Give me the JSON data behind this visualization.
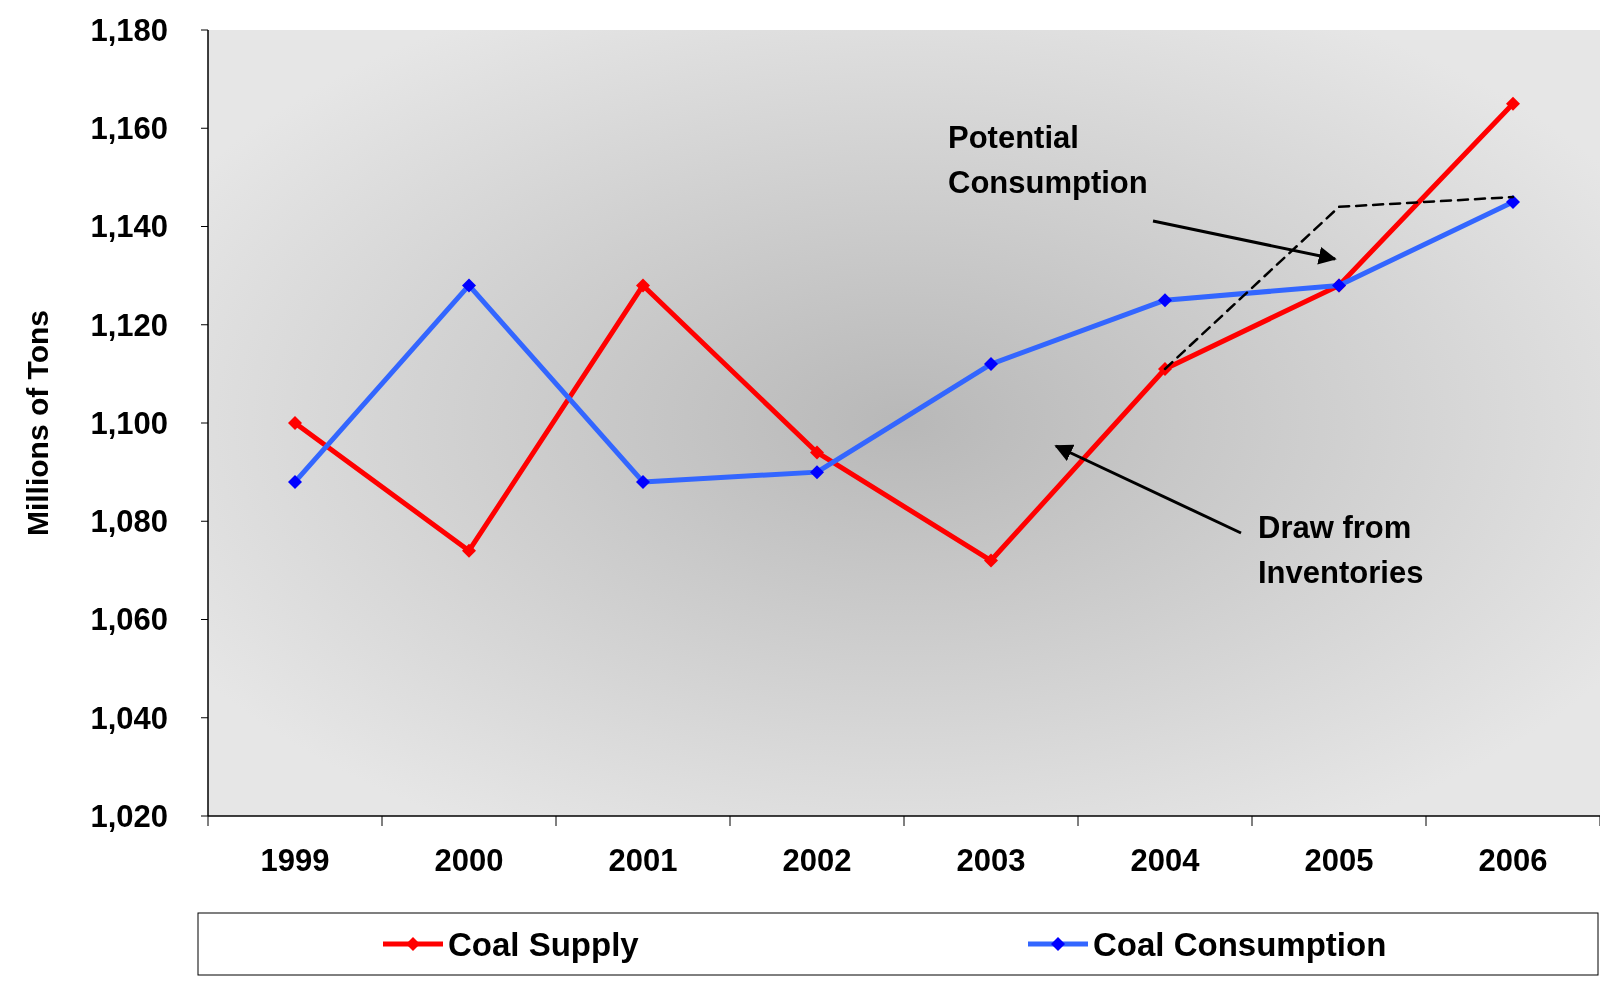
{
  "chart_data": {
    "type": "line",
    "ylabel": "Millions of Tons",
    "categories": [
      "1999",
      "2000",
      "2001",
      "2002",
      "2003",
      "2004",
      "2005",
      "2006"
    ],
    "series": [
      {
        "name": "Coal Supply",
        "color": "#ff0000",
        "values": [
          1100,
          1074,
          1128,
          1094,
          1072,
          1111,
          1128,
          1165
        ]
      },
      {
        "name": "Coal Consumption",
        "color": "#3366ff",
        "values": [
          1088,
          1128,
          1088,
          1090,
          1112,
          1125,
          1128,
          1145
        ]
      },
      {
        "color": "#000000",
        "values": [
          null,
          null,
          null,
          null,
          null,
          1111,
          1144,
          1146
        ],
        "marker": "none",
        "line_style": "dashed"
      }
    ],
    "ylim": [
      1020,
      1180
    ],
    "yticks": [
      {
        "value": 1020,
        "label": "1,020"
      },
      {
        "value": 1040,
        "label": "1,040"
      },
      {
        "value": 1060,
        "label": "1,060"
      },
      {
        "value": 1080,
        "label": "1,080"
      },
      {
        "value": 1100,
        "label": "1,100"
      },
      {
        "value": 1120,
        "label": "1,120"
      },
      {
        "value": 1140,
        "label": "1,140"
      },
      {
        "value": 1160,
        "label": "1,160"
      },
      {
        "value": 1180,
        "label": "1,180"
      }
    ],
    "marker": "diamond",
    "line_style": "solid",
    "legend": "bottom",
    "grid": false,
    "annotations": [
      "Potential Consumption",
      "Draw from Inventories"
    ]
  }
}
